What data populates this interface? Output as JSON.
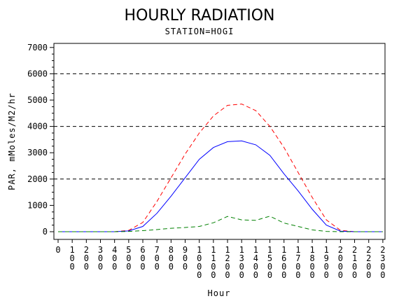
{
  "chart_data": {
    "type": "line",
    "title": "HOURLY RADIATION",
    "subtitle": "STATION=HOGI",
    "xlabel": "Hour",
    "ylabel": "PAR, mMoles/M2/hr",
    "x": [
      0,
      100,
      200,
      300,
      400,
      500,
      600,
      700,
      800,
      900,
      1000,
      1100,
      1200,
      1300,
      1400,
      1500,
      1600,
      1700,
      1800,
      1900,
      2000,
      2100,
      2200,
      2300
    ],
    "x_tick_labels": [
      "0",
      "100",
      "200",
      "300",
      "400",
      "500",
      "600",
      "700",
      "800",
      "900",
      "1000",
      "1100",
      "1200",
      "1300",
      "1400",
      "1500",
      "1600",
      "1700",
      "1800",
      "1900",
      "2000",
      "2100",
      "2200",
      "2300"
    ],
    "ylim": [
      0,
      7000
    ],
    "y_ticks": [
      0,
      1000,
      2000,
      3000,
      4000,
      5000,
      6000,
      7000
    ],
    "y_tick_labels": [
      "0",
      "1000",
      "2000",
      "3000",
      "4000",
      "5000",
      "6000",
      "7000"
    ],
    "reference_lines": [
      2000,
      4000,
      6000
    ],
    "grid": false,
    "series": [
      {
        "color": "#ff0000",
        "dash": "dashed",
        "values": [
          0,
          0,
          0,
          0,
          0,
          50,
          350,
          1150,
          2050,
          2950,
          3750,
          4400,
          4800,
          4850,
          4600,
          4000,
          3200,
          2250,
          1300,
          450,
          50,
          0,
          0,
          0
        ]
      },
      {
        "color": "#0000ff",
        "dash": "solid",
        "values": [
          0,
          0,
          0,
          0,
          0,
          30,
          200,
          700,
          1350,
          2050,
          2750,
          3200,
          3420,
          3450,
          3300,
          2900,
          2200,
          1550,
          850,
          250,
          20,
          0,
          0,
          0
        ]
      },
      {
        "color": "#008000",
        "dash": "dashed",
        "values": [
          0,
          0,
          0,
          0,
          0,
          10,
          40,
          80,
          130,
          160,
          200,
          340,
          580,
          450,
          430,
          590,
          330,
          200,
          70,
          10,
          0,
          0,
          0,
          0
        ]
      }
    ]
  }
}
